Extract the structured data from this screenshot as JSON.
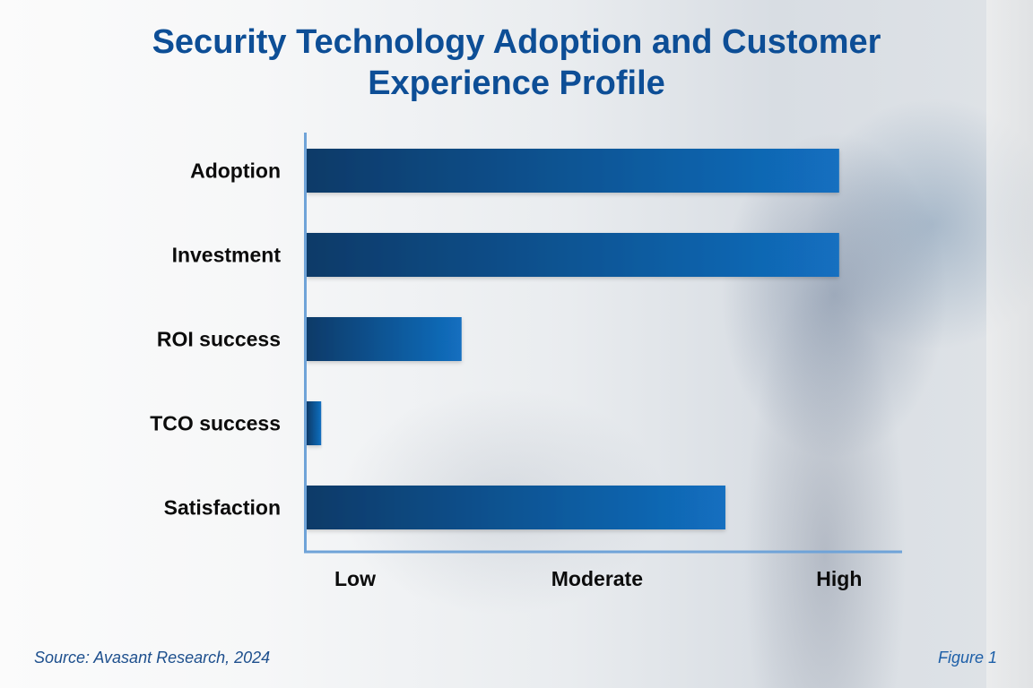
{
  "chart_data": {
    "type": "bar",
    "orientation": "horizontal",
    "title": "Security Technology Adoption and Customer Experience Profile",
    "title_lines": [
      "Security Technology Adoption and Customer",
      "Experience Profile"
    ],
    "categories": [
      "Adoption",
      "Investment",
      "ROI success",
      "TCO success",
      "Satisfaction"
    ],
    "values": [
      3.0,
      3.0,
      1.44,
      0.86,
      2.53
    ],
    "value_scale_note": "Qualitative scale: Low=1, Moderate=2, High=3",
    "x_ticks": [
      {
        "label": "Low",
        "value": 1
      },
      {
        "label": "Moderate",
        "value": 2
      },
      {
        "label": "High",
        "value": 3
      }
    ],
    "xlim": [
      0.8,
      3.26
    ],
    "xlabel": "",
    "ylabel": "",
    "grid": false,
    "legend": null,
    "colors": {
      "bar_start": "#0b3a68",
      "bar_end": "#126fc0",
      "axis": "#6fa3d8",
      "title": "#0d4e96"
    }
  },
  "footer": {
    "source": "Source: Avasant Research, 2024",
    "figure_label": "Figure 1"
  }
}
